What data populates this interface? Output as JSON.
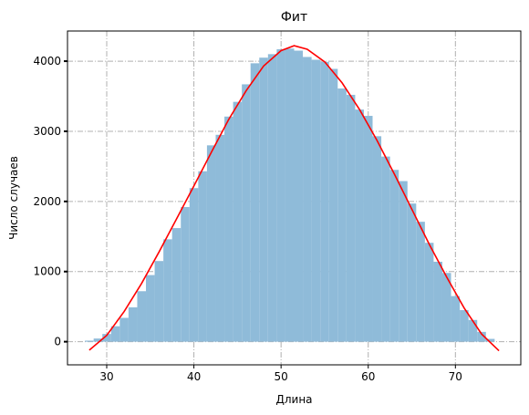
{
  "chart_data": {
    "type": "bar",
    "title": "Фит",
    "xlabel": "Длина",
    "ylabel": "Число случаев",
    "xlim": [
      25.5,
      77.5
    ],
    "ylim": [
      -330,
      4430
    ],
    "xticks": [
      30,
      40,
      50,
      60,
      70
    ],
    "yticks": [
      0,
      1000,
      2000,
      3000,
      4000
    ],
    "grid": true,
    "colors": {
      "bars": "#8fbbd9",
      "fit_line": "#ff0000",
      "grid": "#b0b0b0",
      "axes": "#000000"
    },
    "series": [
      {
        "kind": "histogram",
        "bin_width": 1,
        "bins": [
          [
            28,
            15
          ],
          [
            29,
            45
          ],
          [
            30,
            110
          ],
          [
            31,
            220
          ],
          [
            32,
            340
          ],
          [
            33,
            490
          ],
          [
            34,
            720
          ],
          [
            35,
            950
          ],
          [
            36,
            1150
          ],
          [
            37,
            1460
          ],
          [
            38,
            1620
          ],
          [
            39,
            1920
          ],
          [
            40,
            2190
          ],
          [
            41,
            2430
          ],
          [
            42,
            2800
          ],
          [
            43,
            2950
          ],
          [
            44,
            3210
          ],
          [
            45,
            3420
          ],
          [
            46,
            3670
          ],
          [
            47,
            3970
          ],
          [
            48,
            4050
          ],
          [
            49,
            4100
          ],
          [
            50,
            4170
          ],
          [
            51,
            4180
          ],
          [
            52,
            4150
          ],
          [
            53,
            4060
          ],
          [
            54,
            4020
          ],
          [
            55,
            3990
          ],
          [
            56,
            3890
          ],
          [
            57,
            3610
          ],
          [
            58,
            3520
          ],
          [
            59,
            3310
          ],
          [
            60,
            3220
          ],
          [
            61,
            2930
          ],
          [
            62,
            2640
          ],
          [
            63,
            2450
          ],
          [
            64,
            2290
          ],
          [
            65,
            1970
          ],
          [
            66,
            1710
          ],
          [
            67,
            1410
          ],
          [
            68,
            1140
          ],
          [
            69,
            980
          ],
          [
            70,
            650
          ],
          [
            71,
            450
          ],
          [
            72,
            310
          ],
          [
            73,
            140
          ],
          [
            74,
            40
          ]
        ]
      },
      {
        "kind": "line",
        "x": [
          28,
          30,
          32,
          34,
          36,
          38,
          40,
          42,
          44,
          46,
          48,
          50,
          51.5,
          53,
          55,
          57,
          59,
          61,
          63,
          65,
          67,
          69,
          71,
          73,
          75
        ],
        "y": [
          -120,
          90,
          430,
          830,
          1280,
          1750,
          2220,
          2700,
          3170,
          3580,
          3930,
          4150,
          4220,
          4170,
          3990,
          3690,
          3310,
          2870,
          2390,
          1890,
          1390,
          920,
          480,
          110,
          -130
        ]
      }
    ]
  }
}
